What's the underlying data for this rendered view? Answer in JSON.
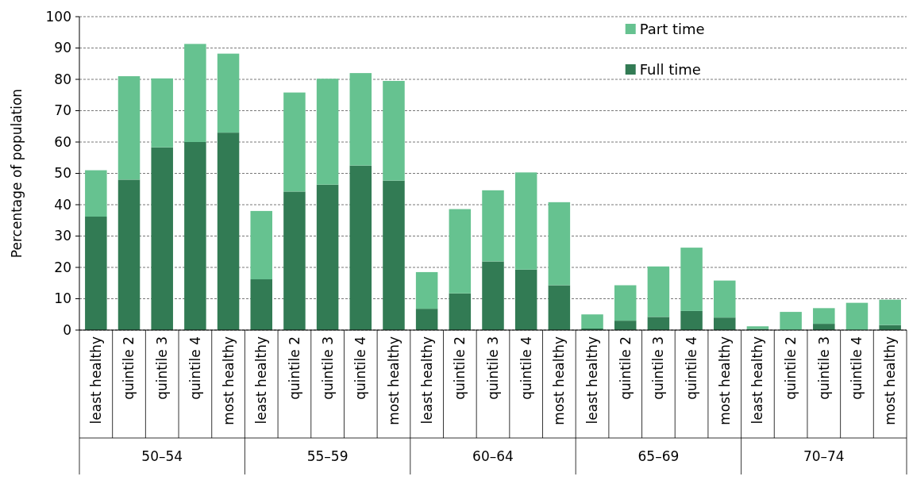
{
  "chart_data": {
    "type": "bar",
    "stacked": true,
    "ylabel": "Percentage of population",
    "categories": [
      "least healthy",
      "quintile 2",
      "quintile 3",
      "quintile 4",
      "most healthy",
      "least healthy",
      "quintile 2",
      "quintile 3",
      "quintile 4",
      "most healthy",
      "least healthy",
      "quintile 2",
      "quintile 3",
      "quintile 4",
      "most healthy",
      "least healthy",
      "quintile 2",
      "quintile 3",
      "quintile 4",
      "most healthy",
      "least healthy",
      "quintile 2",
      "quintile 3",
      "quintile 4",
      "most healthy"
    ],
    "series": [
      {
        "name": "Full time",
        "color": "#327b54",
        "values": [
          36.2,
          48,
          58.3,
          60,
          63,
          16.2,
          44.2,
          46.4,
          52.5,
          47.7,
          6.8,
          11.7,
          21.9,
          19.3,
          14.3,
          0.5,
          3,
          4.2,
          6.1,
          4,
          0.4,
          0,
          2,
          0,
          1.6
        ]
      },
      {
        "name": "Part time",
        "color": "#66c290",
        "values": [
          14.8,
          33,
          22,
          31.3,
          25.2,
          21.8,
          31.6,
          33.8,
          29.5,
          31.8,
          11.7,
          26.9,
          22.7,
          31,
          26.5,
          4.5,
          11.3,
          16.1,
          20.2,
          11.8,
          0.8,
          5.8,
          5,
          8.7,
          8.1
        ]
      }
    ],
    "annotations": [
      "50–54",
      "55–59",
      "60–64",
      "65–69",
      "70–74"
    ],
    "ylim": [
      0,
      100
    ],
    "yticks": [
      0,
      10,
      20,
      30,
      40,
      50,
      60,
      70,
      80,
      90,
      100
    ],
    "grid": "y",
    "legend": "top right"
  }
}
